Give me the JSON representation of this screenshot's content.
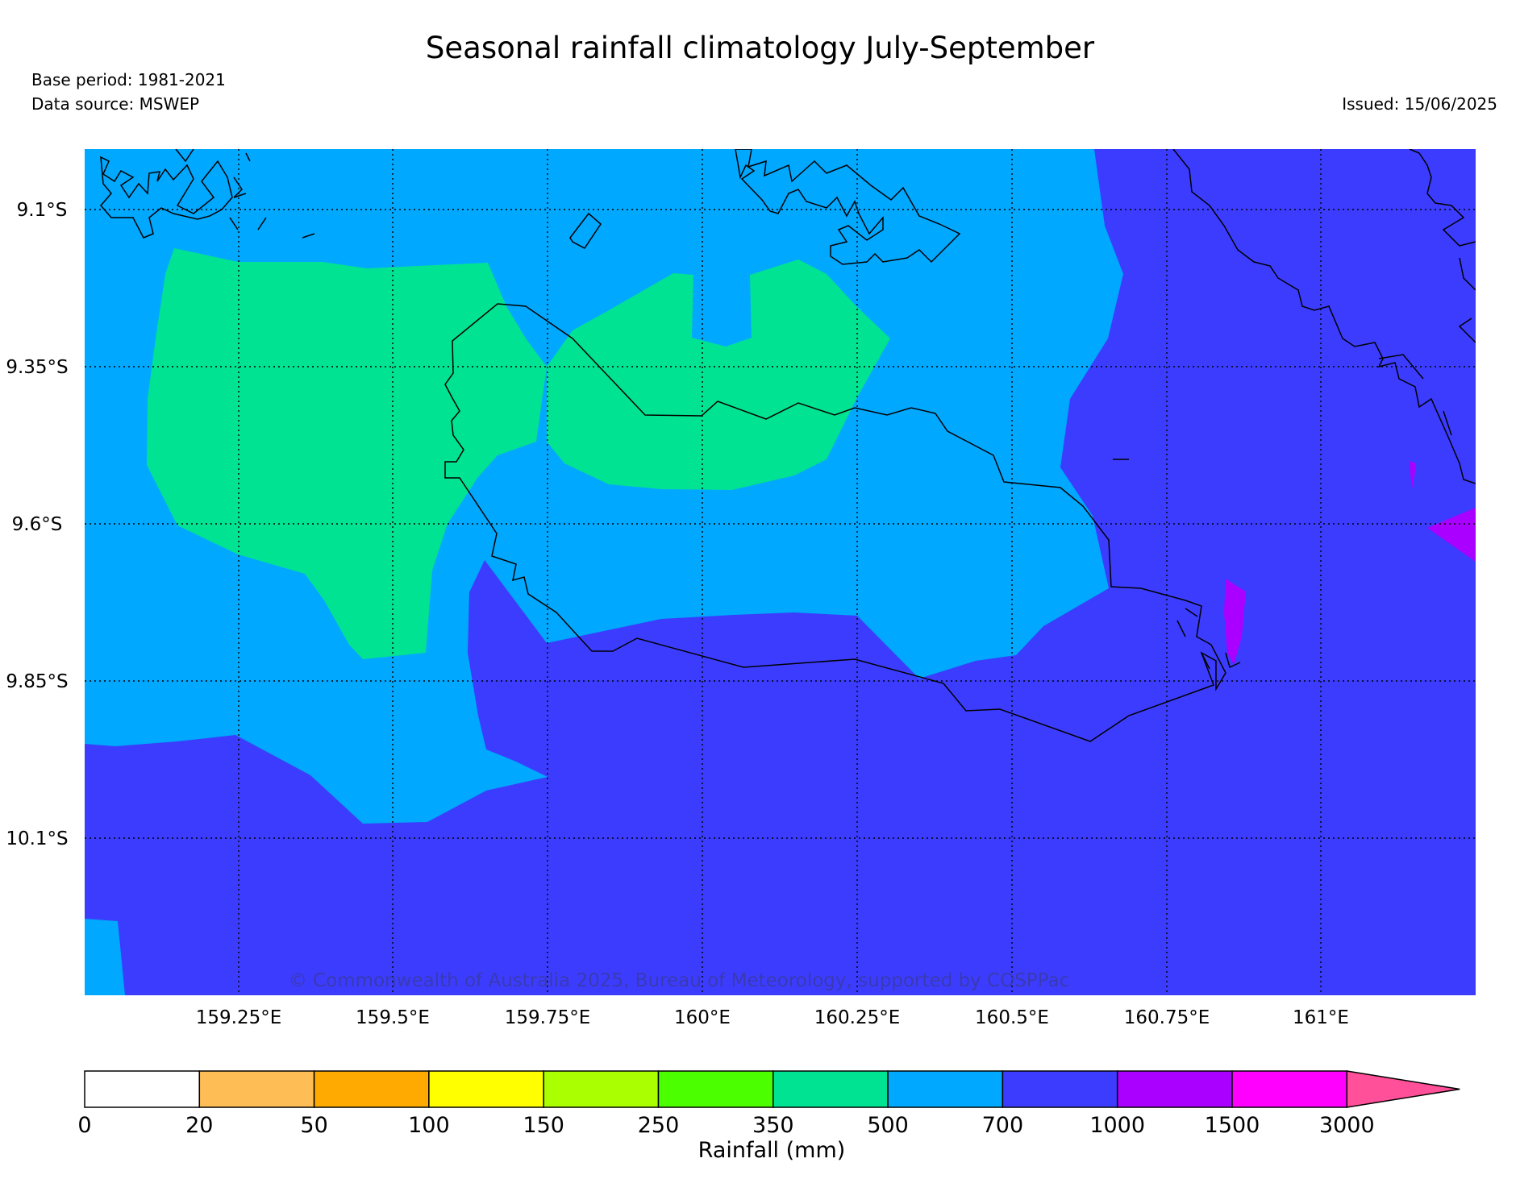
{
  "header": {
    "title": "Seasonal rainfall climatology July-September",
    "base_period": "Base period: 1981-2021",
    "data_source": "Data source: MSWEP",
    "issued": "Issued: 15/06/2025"
  },
  "map": {
    "lat_labels": [
      "9.1°S",
      "9.35°S",
      "9.6°S",
      "9.85°S",
      "10.1°S"
    ],
    "lon_labels": [
      "159.25°E",
      "159.5°E",
      "159.75°E",
      "160°E",
      "160.25°E",
      "160.5°E",
      "160.75°E",
      "161°E"
    ],
    "copyright": "© Commonwealth of Australia 2025, Bureau of Meteorology, supported by COSPPac",
    "fill_colors": {
      "350-500": "#00e392",
      "500-700": "#00a8ff",
      "700-1000": "#3c3cff",
      "1000-1500": "#aa00ff"
    }
  },
  "colorbar": {
    "label": "Rainfall (mm)",
    "ticks": [
      "0",
      "20",
      "50",
      "100",
      "150",
      "250",
      "350",
      "500",
      "700",
      "1000",
      "1500",
      "3000"
    ],
    "colors": [
      "#ffffff",
      "#ffbe55",
      "#ffaa00",
      "#ffff00",
      "#aaff00",
      "#4cff00",
      "#00e392",
      "#00a8ff",
      "#3c3cff",
      "#aa00ff",
      "#ff00ff",
      "#ff5099"
    ],
    "extend": "max"
  }
}
